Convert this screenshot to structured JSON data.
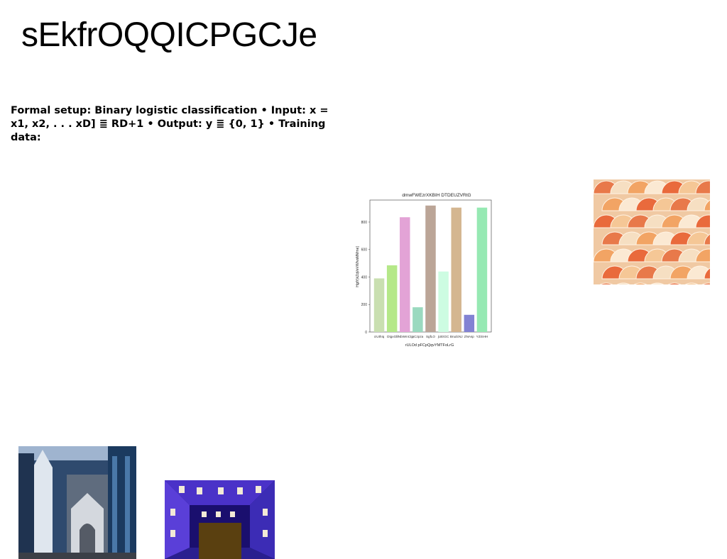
{
  "page": {
    "title": "sEkfrOQQICPGCJe"
  },
  "text_block": {
    "line1": "Formal setup: Binary logistic classification • Input: x =",
    "line2": "x1, x2, . . . xD] ≣ RD+1 • Output: y ≣ {0, 1} • Training data:"
  },
  "chart_data": {
    "type": "bar",
    "title": "dmwFWEzrXKBIH DTDEUZVRtG",
    "xlabel": "rULOd pFCpQqvYMTFoLrG",
    "ylabel": "HgtYjkZqVeVWIvsMMme]",
    "ylim": [
      0,
      960
    ],
    "yticks": [
      0,
      200,
      400,
      600,
      800
    ],
    "categories": [
      "cIUthIq",
      "DtgxGl",
      "ilNbWmCtp",
      "pCzpza",
      "SgfLO",
      "jUEtGC",
      "BrudcNJ",
      "ZNAsp",
      "YZiSHH"
    ],
    "values": [
      390,
      485,
      835,
      180,
      920,
      440,
      905,
      125,
      905
    ],
    "colors": [
      "#c9dfb0",
      "#b5e888",
      "#e3a3d6",
      "#9ad9bf",
      "#bba597",
      "#cdfce2",
      "#d4b690",
      "#8282d3",
      "#96e9b3"
    ],
    "grid": false
  },
  "images": [
    {
      "name": "abstract-tiles-image"
    },
    {
      "name": "street-church-image"
    },
    {
      "name": "purple-courtyard-image"
    }
  ]
}
